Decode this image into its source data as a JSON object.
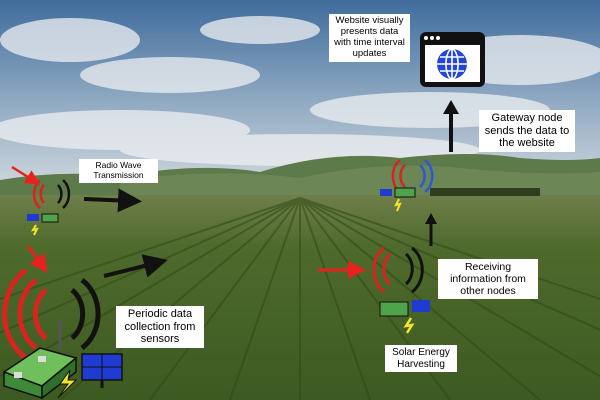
{
  "labels": {
    "website": "Website visually\npresents data\nwith time interval\nupdates",
    "gateway": "Gateway node\nsends the data to\nthe website",
    "radio": "Radio Wave\nTransmission",
    "receiving": "Receiving\ninformation from\nother nodes",
    "periodic": "Periodic data\ncollection from\nsensors",
    "solar": "Solar Energy\nHarvesting"
  },
  "colors": {
    "sky_top": "#3e6fa3",
    "sky_bottom": "#c9d6df",
    "field": "#4d6b2e",
    "hills": "#5d7a4a",
    "arrow_red": "#e8201e",
    "wave_red": "#d9231d",
    "wave_black": "#111111",
    "wave_blue": "#2a59d6",
    "node_green": "#4fa34a",
    "panel_blue": "#1f3bd1",
    "bolt_yellow": "#f5e52a",
    "browser_blue": "#2346d6"
  },
  "icons": [
    "globe-icon",
    "sensor-node-icon",
    "solar-panel-icon",
    "lightning-bolt-icon",
    "radio-wave-icon",
    "arrow-icon"
  ]
}
